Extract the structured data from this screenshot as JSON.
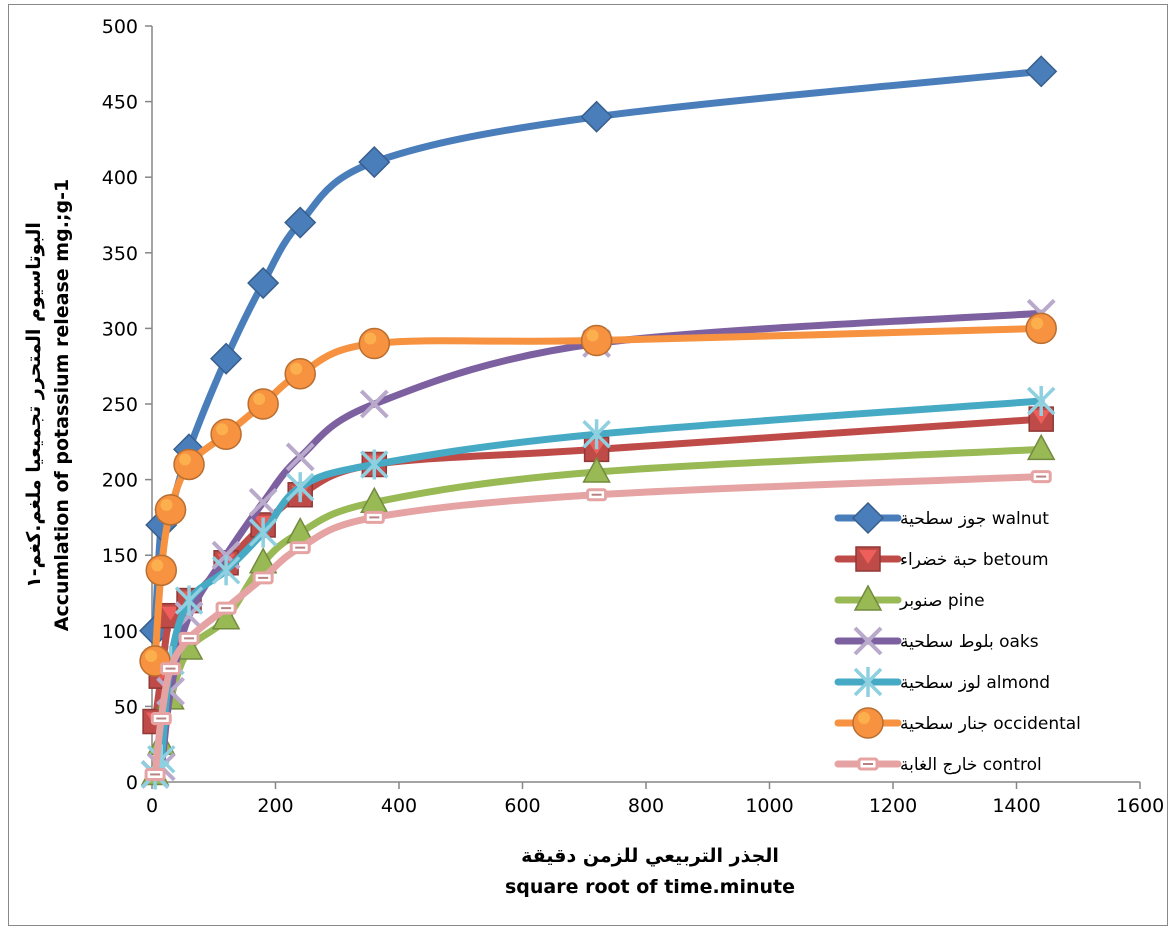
{
  "chart_data": {
    "type": "line",
    "title": "",
    "xlabel_ar": "الجذر التربيعي للزمن دقيقة",
    "xlabel_en": "square root of time.minute",
    "ylabel_ar": "البوتاسيوم المتحرر تجميعيا ملغم.كغم-١",
    "ylabel_en": "Accumlation of potassium release mg.;g-1",
    "xlim": [
      0,
      1600
    ],
    "ylim": [
      0,
      500
    ],
    "xticks": [
      "0",
      "200",
      "400",
      "600",
      "800",
      "1000",
      "1200",
      "1400",
      "1600"
    ],
    "yticks": [
      "0",
      "50",
      "100",
      "150",
      "200",
      "250",
      "300",
      "350",
      "400",
      "450",
      "500"
    ],
    "x": [
      5,
      15,
      30,
      60,
      120,
      180,
      240,
      360,
      720,
      1440
    ],
    "legend_position": "right",
    "series": [
      {
        "name": "جوز سطحية walnut",
        "color": "#4A7EBB",
        "marker": "diamond",
        "values": [
          100,
          170,
          180,
          220,
          280,
          330,
          370,
          410,
          440,
          470
        ]
      },
      {
        "name": "حبة خضراء betoum",
        "color": "#BE4B48",
        "marker": "square",
        "values": [
          40,
          70,
          110,
          120,
          145,
          170,
          190,
          210,
          220,
          240
        ]
      },
      {
        "name": "صنوبر pine",
        "color": "#98B954",
        "marker": "triangle",
        "values": [
          5,
          25,
          55,
          88,
          108,
          145,
          165,
          185,
          205,
          220
        ]
      },
      {
        "name": "بلوط سطحية oaks",
        "color": "#7D60A0",
        "marker": "x",
        "values": [
          5,
          10,
          60,
          110,
          150,
          185,
          215,
          250,
          290,
          310
        ]
      },
      {
        "name": "لوز سطحية almond",
        "color": "#46AAC5",
        "marker": "star",
        "values": [
          5,
          15,
          80,
          120,
          140,
          165,
          195,
          210,
          230,
          252
        ]
      },
      {
        "name": "جنار سطحية occidental",
        "color": "#F69240",
        "marker": "circle",
        "values": [
          80,
          140,
          180,
          210,
          230,
          250,
          270,
          290,
          292,
          300
        ]
      },
      {
        "name": "خارج الغابة control",
        "color": "#E6A3A3",
        "marker": "dash",
        "values": [
          5,
          42,
          75,
          95,
          115,
          135,
          155,
          175,
          190,
          202
        ]
      }
    ]
  }
}
